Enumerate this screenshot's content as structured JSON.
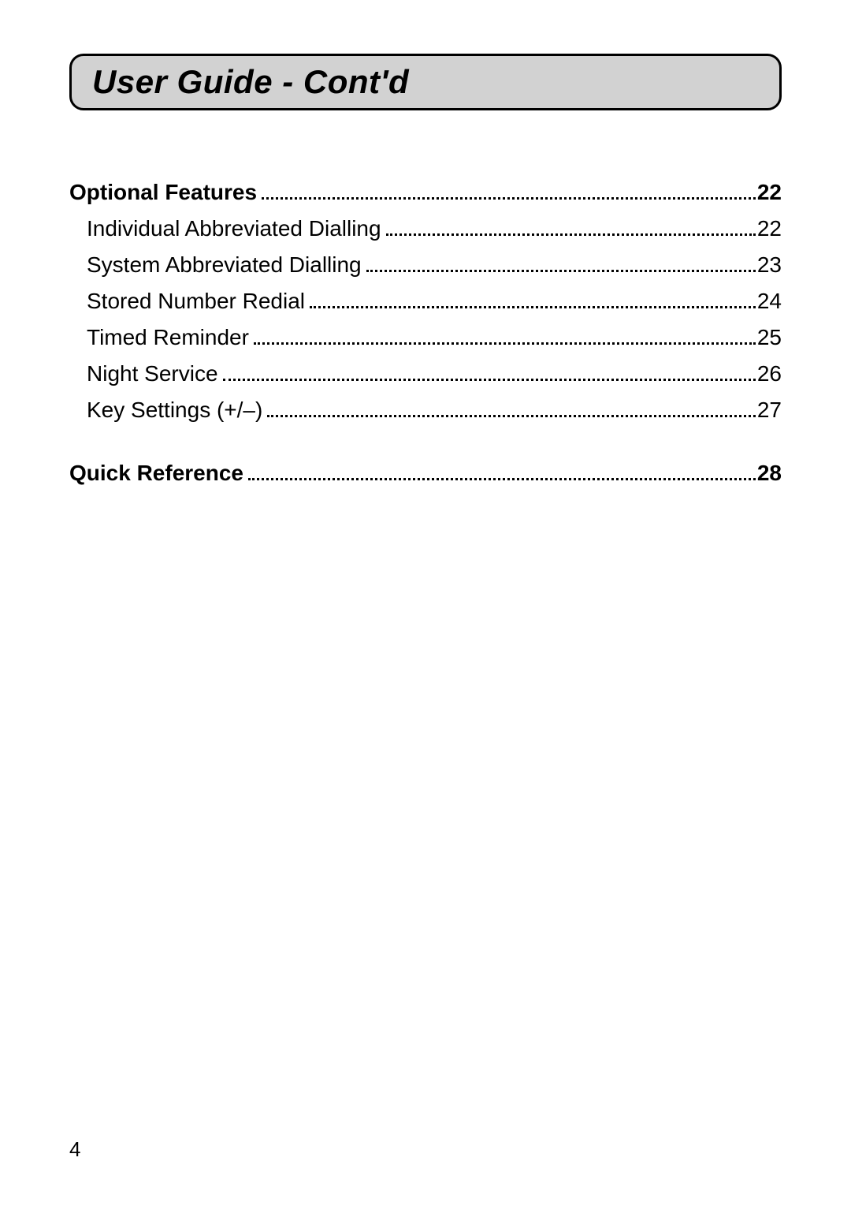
{
  "title": "User Guide - Cont'd",
  "page_number": "4",
  "styling": {
    "page_bg": "#ffffff",
    "title_bg": "#d2d2d2",
    "title_border": "#000000",
    "title_border_width": 3,
    "title_border_radius": 18,
    "text_color": "#000000",
    "title_fontsize": 42,
    "body_fontsize": 28,
    "page_number_fontsize": 26,
    "dot_leader_color": "#000000"
  },
  "toc": [
    {
      "type": "section",
      "label": "Optional Features",
      "page": "22"
    },
    {
      "type": "sub",
      "label": "Individual Abbreviated Dialling",
      "page": "22"
    },
    {
      "type": "sub",
      "label": "System Abbreviated Dialling",
      "page": "23"
    },
    {
      "type": "sub",
      "label": "Stored Number Redial",
      "page": "24"
    },
    {
      "type": "sub",
      "label": "Timed Reminder",
      "page": "25"
    },
    {
      "type": "sub",
      "label": "Night Service",
      "page": "26"
    },
    {
      "type": "sub",
      "label": "Key Settings (+/–)",
      "page": "27"
    },
    {
      "type": "gap"
    },
    {
      "type": "section",
      "label": "Quick Reference",
      "page": "28"
    }
  ]
}
